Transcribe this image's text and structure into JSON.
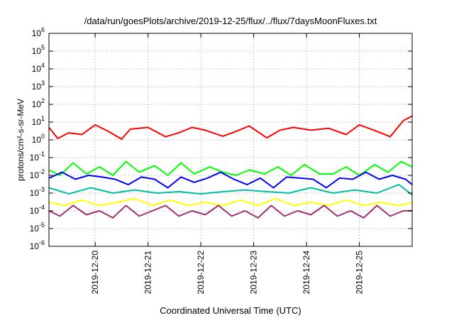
{
  "chart_data": {
    "type": "line",
    "title": "/data/run/goesPlots/archive/2019-12-25/flux/../flux/7daysMoonFluxes.txt",
    "xlabel": "Coordinated Universal Time (UTC)",
    "ylabel": "protons/cm²-s-sr-MeV",
    "y_scale": "log",
    "ylim": [
      1e-06,
      1000000.0
    ],
    "y_ticks": [
      {
        "base": "10",
        "exp": "-6",
        "value": 1e-06
      },
      {
        "base": "10",
        "exp": "-5",
        "value": 1e-05
      },
      {
        "base": "10",
        "exp": "-4",
        "value": 0.0001
      },
      {
        "base": "10",
        "exp": "-3",
        "value": 0.001
      },
      {
        "base": "10",
        "exp": "-2",
        "value": 0.01
      },
      {
        "base": "10",
        "exp": "-1",
        "value": 0.1
      },
      {
        "base": "10",
        "exp": "0",
        "value": 1
      },
      {
        "base": "10",
        "exp": "1",
        "value": 10
      },
      {
        "base": "10",
        "exp": "2",
        "value": 100
      },
      {
        "base": "10",
        "exp": "3",
        "value": 1000
      },
      {
        "base": "10",
        "exp": "4",
        "value": 10000
      },
      {
        "base": "10",
        "exp": "5",
        "value": 100000
      },
      {
        "base": "10",
        "exp": "6",
        "value": 1000000
      }
    ],
    "xlim": [
      "2019-12-19T03:00",
      "2019-12-26T00:00"
    ],
    "x_ticks": [
      "2019-12-20",
      "2019-12-21",
      "2019-12-22",
      "2019-12-23",
      "2019-12-24",
      "2019-12-25"
    ],
    "grid": true,
    "series": [
      {
        "color": "#ff0000",
        "x": [
          "2019-12-19T03:00",
          "2019-12-19T07:00",
          "2019-12-19T12:00",
          "2019-12-19T18:00",
          "2019-12-20T00:00",
          "2019-12-20T06:00",
          "2019-12-20T12:00",
          "2019-12-20T16:00",
          "2019-12-21T00:00",
          "2019-12-21T08:00",
          "2019-12-21T14:00",
          "2019-12-21T20:00",
          "2019-12-22T02:00",
          "2019-12-22T10:00",
          "2019-12-22T16:00",
          "2019-12-22T22:00",
          "2019-12-23T06:00",
          "2019-12-23T12:00",
          "2019-12-23T18:00",
          "2019-12-24T02:00",
          "2019-12-24T10:00",
          "2019-12-24T18:00",
          "2019-12-25T00:00",
          "2019-12-25T08:00",
          "2019-12-25T14:00",
          "2019-12-25T20:00",
          "2019-12-26T00:00"
        ],
        "y": [
          5.0,
          1.2,
          2.5,
          2.0,
          7.0,
          3.0,
          1.1,
          4.0,
          5.0,
          1.5,
          2.5,
          5.0,
          3.5,
          1.6,
          3.0,
          6.0,
          1.3,
          3.5,
          5.0,
          3.5,
          4.5,
          2.0,
          7.0,
          3.0,
          1.5,
          12,
          22
        ]
      },
      {
        "color": "#00ff00",
        "x": [
          "2019-12-19T03:00",
          "2019-12-19T08:00",
          "2019-12-19T14:00",
          "2019-12-19T20:00",
          "2019-12-20T02:00",
          "2019-12-20T08:00",
          "2019-12-20T14:00",
          "2019-12-20T20:00",
          "2019-12-21T03:00",
          "2019-12-21T09:00",
          "2019-12-21T15:00",
          "2019-12-21T21:00",
          "2019-12-22T04:00",
          "2019-12-22T10:00",
          "2019-12-22T16:00",
          "2019-12-22T22:00",
          "2019-12-23T05:00",
          "2019-12-23T11:00",
          "2019-12-23T17:00",
          "2019-12-23T23:00",
          "2019-12-24T06:00",
          "2019-12-24T12:00",
          "2019-12-24T18:00",
          "2019-12-25T00:00",
          "2019-12-25T07:00",
          "2019-12-25T13:00",
          "2019-12-25T19:00",
          "2019-12-26T00:00"
        ],
        "y": [
          0.02,
          0.01,
          0.05,
          0.012,
          0.03,
          0.01,
          0.06,
          0.015,
          0.035,
          0.01,
          0.05,
          0.012,
          0.03,
          0.015,
          0.01,
          0.02,
          0.012,
          0.03,
          0.01,
          0.04,
          0.012,
          0.012,
          0.03,
          0.01,
          0.04,
          0.015,
          0.06,
          0.03
        ]
      },
      {
        "color": "#0000ff",
        "x": [
          "2019-12-19T03:00",
          "2019-12-19T09:00",
          "2019-12-19T15:00",
          "2019-12-19T21:00",
          "2019-12-20T03:00",
          "2019-12-20T09:00",
          "2019-12-20T15:00",
          "2019-12-20T21:00",
          "2019-12-21T03:00",
          "2019-12-21T09:00",
          "2019-12-21T15:00",
          "2019-12-21T21:00",
          "2019-12-22T03:00",
          "2019-12-22T09:00",
          "2019-12-22T15:00",
          "2019-12-22T21:00",
          "2019-12-23T03:00",
          "2019-12-23T09:00",
          "2019-12-23T15:00",
          "2019-12-23T21:00",
          "2019-12-24T03:00",
          "2019-12-24T09:00",
          "2019-12-24T15:00",
          "2019-12-24T21:00",
          "2019-12-25T03:00",
          "2019-12-25T09:00",
          "2019-12-25T15:00",
          "2019-12-25T21:00",
          "2019-12-26T00:00"
        ],
        "y": [
          0.007,
          0.015,
          0.006,
          0.01,
          0.008,
          0.006,
          0.003,
          0.008,
          0.006,
          0.002,
          0.008,
          0.004,
          0.007,
          0.015,
          0.006,
          0.003,
          0.007,
          0.002,
          0.008,
          0.007,
          0.006,
          0.002,
          0.007,
          0.006,
          0.015,
          0.006,
          0.01,
          0.006,
          0.003
        ]
      },
      {
        "color": "#00c0a0",
        "x": [
          "2019-12-19T03:00",
          "2019-12-19T12:00",
          "2019-12-19T22:00",
          "2019-12-20T08:00",
          "2019-12-20T18:00",
          "2019-12-21T04:00",
          "2019-12-21T14:00",
          "2019-12-22T00:00",
          "2019-12-22T10:00",
          "2019-12-22T20:00",
          "2019-12-23T06:00",
          "2019-12-23T16:00",
          "2019-12-24T02:00",
          "2019-12-24T12:00",
          "2019-12-24T22:00",
          "2019-12-25T08:00",
          "2019-12-25T18:00",
          "2019-12-26T00:00"
        ],
        "y": [
          0.002,
          0.0009,
          0.002,
          0.001,
          0.0015,
          0.001,
          0.0012,
          0.0009,
          0.0012,
          0.0015,
          0.0012,
          0.001,
          0.002,
          0.001,
          0.0015,
          0.001,
          0.003,
          0.0008
        ]
      },
      {
        "color": "#ffff00",
        "x": [
          "2019-12-19T03:00",
          "2019-12-19T10:00",
          "2019-12-19T18:00",
          "2019-12-20T02:00",
          "2019-12-20T10:00",
          "2019-12-20T18:00",
          "2019-12-21T02:00",
          "2019-12-21T10:00",
          "2019-12-21T18:00",
          "2019-12-22T02:00",
          "2019-12-22T10:00",
          "2019-12-22T18:00",
          "2019-12-23T02:00",
          "2019-12-23T10:00",
          "2019-12-23T18:00",
          "2019-12-24T02:00",
          "2019-12-24T10:00",
          "2019-12-24T18:00",
          "2019-12-25T02:00",
          "2019-12-25T10:00",
          "2019-12-25T18:00",
          "2019-12-26T00:00"
        ],
        "y": [
          0.0003,
          0.0002,
          0.0004,
          0.0002,
          0.0003,
          0.0005,
          0.0002,
          0.0004,
          0.0002,
          0.0003,
          0.0002,
          0.0004,
          0.0002,
          0.0005,
          0.0002,
          0.0003,
          0.0002,
          0.0004,
          0.0002,
          0.0003,
          0.0002,
          0.0003
        ]
      },
      {
        "color": "#a03070",
        "x": [
          "2019-12-19T03:00",
          "2019-12-19T08:00",
          "2019-12-19T14:00",
          "2019-12-19T20:00",
          "2019-12-20T02:00",
          "2019-12-20T08:00",
          "2019-12-20T14:00",
          "2019-12-20T20:00",
          "2019-12-21T02:00",
          "2019-12-21T08:00",
          "2019-12-21T14:00",
          "2019-12-21T20:00",
          "2019-12-22T02:00",
          "2019-12-22T08:00",
          "2019-12-22T14:00",
          "2019-12-22T20:00",
          "2019-12-23T02:00",
          "2019-12-23T08:00",
          "2019-12-23T14:00",
          "2019-12-23T20:00",
          "2019-12-24T02:00",
          "2019-12-24T08:00",
          "2019-12-24T14:00",
          "2019-12-24T20:00",
          "2019-12-25T02:00",
          "2019-12-25T08:00",
          "2019-12-25T14:00",
          "2019-12-25T20:00",
          "2019-12-26T00:00"
        ],
        "y": [
          0.0001,
          5e-05,
          0.0002,
          6e-05,
          0.0001,
          4e-05,
          0.0002,
          5e-05,
          0.0001,
          0.0002,
          5e-05,
          0.0001,
          6e-05,
          0.0002,
          5e-05,
          0.0001,
          4e-05,
          0.0002,
          5e-05,
          0.0001,
          6e-05,
          0.0002,
          5e-05,
          0.0001,
          4e-05,
          0.0002,
          5e-05,
          0.0001,
          0.0001
        ]
      }
    ]
  }
}
